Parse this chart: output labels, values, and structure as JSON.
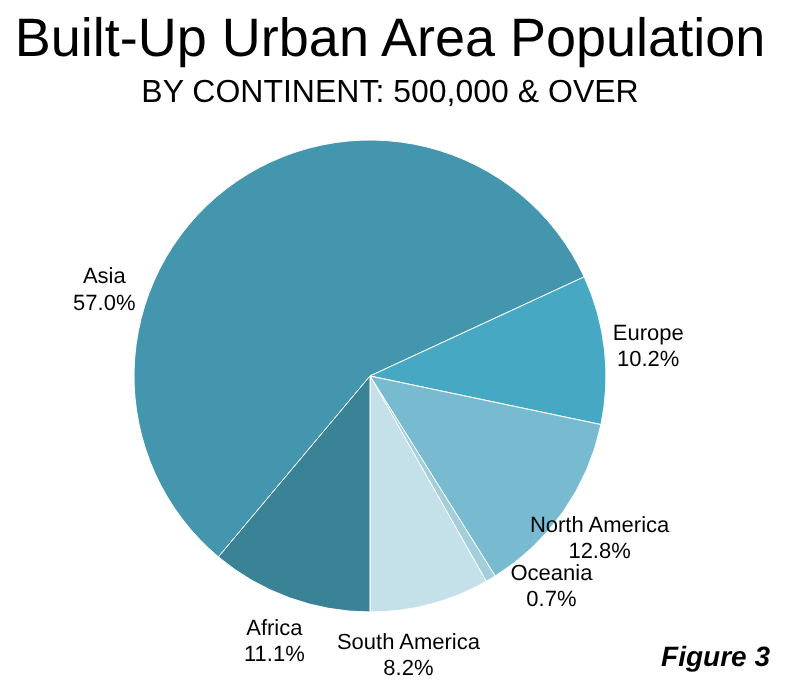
{
  "chart_data": {
    "type": "pie",
    "title": "Built-Up Urban Area Population",
    "subtitle": "BY CONTINENT: 500,000 & OVER",
    "categories": [
      "Asia",
      "Europe",
      "North America",
      "Oceania",
      "South America",
      "Africa"
    ],
    "values": [
      57.0,
      10.2,
      12.8,
      0.7,
      8.2,
      11.1
    ],
    "value_labels": [
      "57.0%",
      "10.2%",
      "12.8%",
      "0.7%",
      "8.2%",
      "11.1%"
    ],
    "colors": [
      "#4396ad",
      "#46a8c3",
      "#78bad0",
      "#a3cfdc",
      "#c4e1e9",
      "#3a8397"
    ],
    "annotations": [
      "Figure 3"
    ],
    "legend": false
  }
}
